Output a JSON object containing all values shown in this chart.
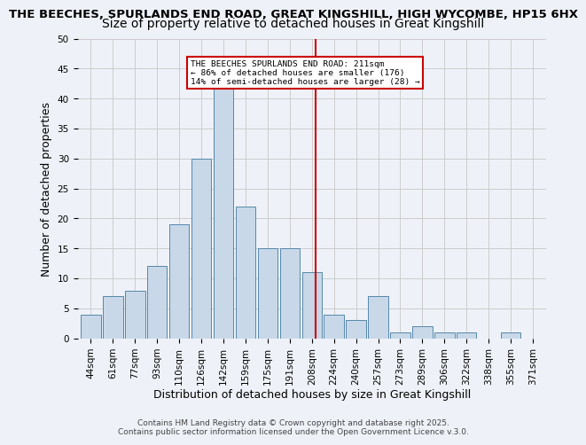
{
  "title_line1": "THE BEECHES, SPURLANDS END ROAD, GREAT KINGSHILL, HIGH WYCOMBE, HP15 6HX",
  "title_line2": "Size of property relative to detached houses in Great Kingshill",
  "xlabel": "Distribution of detached houses by size in Great Kingshill",
  "ylabel": "Number of detached properties",
  "categories": [
    "44sqm",
    "61sqm",
    "77sqm",
    "93sqm",
    "110sqm",
    "126sqm",
    "142sqm",
    "159sqm",
    "175sqm",
    "191sqm",
    "208sqm",
    "224sqm",
    "240sqm",
    "257sqm",
    "273sqm",
    "289sqm",
    "306sqm",
    "322sqm",
    "338sqm",
    "355sqm",
    "371sqm"
  ],
  "values": [
    4,
    7,
    8,
    12,
    19,
    30,
    42,
    22,
    15,
    15,
    11,
    4,
    3,
    7,
    1,
    2,
    1,
    1,
    0,
    1,
    0
  ],
  "bar_color": "#c8d8e8",
  "bar_edge_color": "#5588aa",
  "grid_color": "#cccccc",
  "background_color": "#eef2f8",
  "vline_color": "#cc0000",
  "annotation_text": "THE BEECHES SPURLANDS END ROAD: 211sqm\n← 86% of detached houses are smaller (176)\n14% of semi-detached houses are larger (28) →",
  "annotation_box_edge": "#cc0000",
  "ylim": [
    0,
    50
  ],
  "yticks": [
    0,
    5,
    10,
    15,
    20,
    25,
    30,
    35,
    40,
    45,
    50
  ],
  "footer_text": "Contains HM Land Registry data © Crown copyright and database right 2025.\nContains public sector information licensed under the Open Government Licence v.3.0.",
  "title1_fontsize": 9.5,
  "title2_fontsize": 10,
  "tick_fontsize": 7.5,
  "ylabel_fontsize": 9,
  "xlabel_fontsize": 9,
  "footer_fontsize": 6.5
}
